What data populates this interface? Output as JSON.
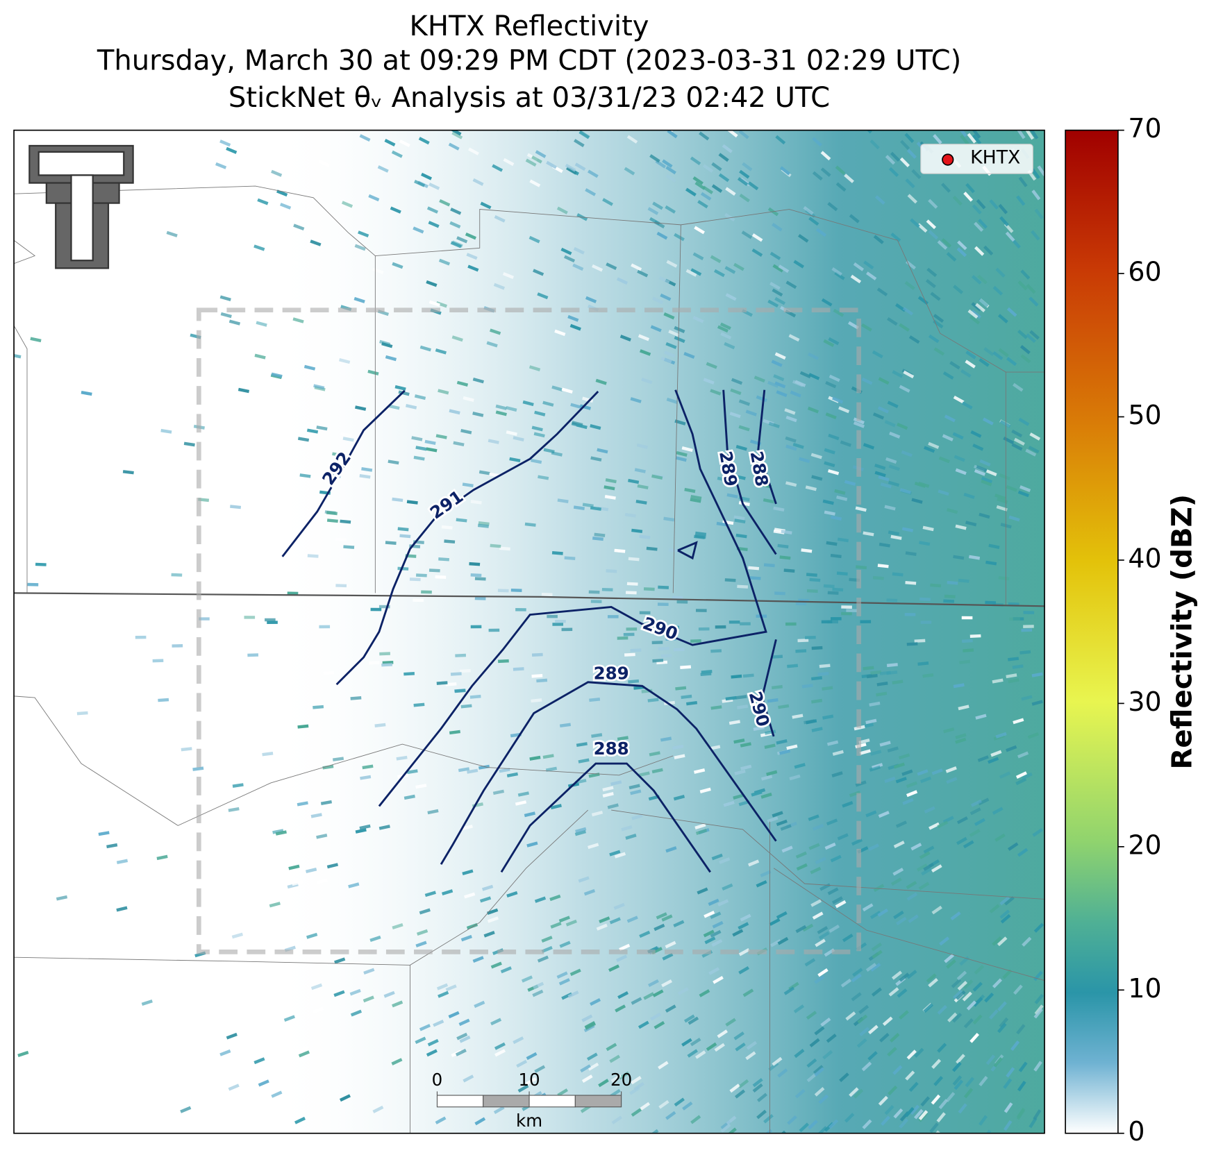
{
  "chart_data": {
    "type": "radar-map",
    "title": [
      "KHTX Reflectivity",
      "Thursday, March 30 at 09:29 PM CDT (2023-03-31 02:29 UTC)",
      "StickNet θᵥ Analysis at 03/31/23 02:42 UTC"
    ],
    "legend": [
      "KHTX"
    ],
    "colorbar": {
      "label": "Reflectivity (dBZ)",
      "ylim": [
        0,
        70
      ],
      "yticks": [
        0,
        10,
        20,
        30,
        40,
        50,
        60,
        70
      ]
    },
    "contour_labels": [
      292,
      291,
      290,
      289,
      288,
      290,
      289,
      288
    ],
    "scale_bar": {
      "xlim": [
        0,
        20
      ],
      "xticks": [
        0,
        10,
        20
      ],
      "unit": "km"
    }
  }
}
